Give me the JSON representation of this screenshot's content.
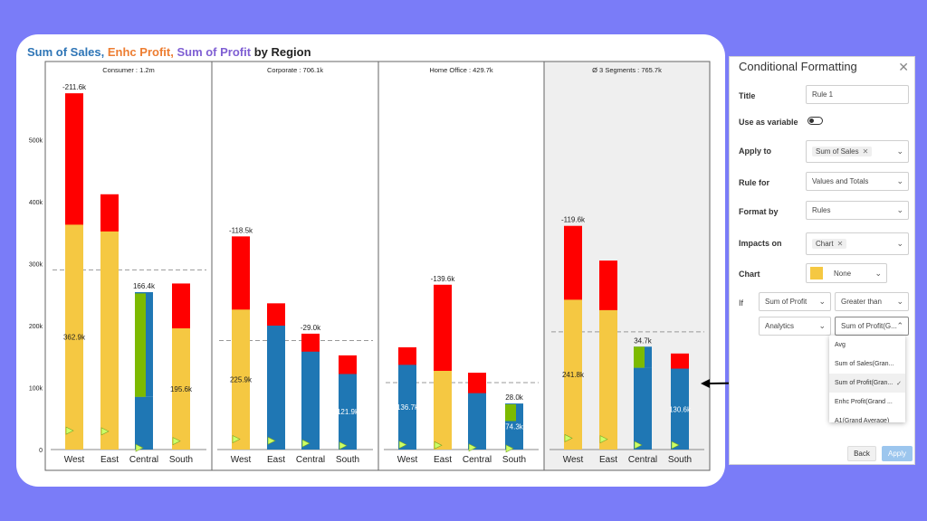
{
  "chart_title": {
    "part1": "Sum of Sales,",
    "part2": "Enhc Profit,",
    "part3": "Sum of Profit",
    "part4": "by Region"
  },
  "colors": {
    "sales": "#f5c842",
    "enhc": "#ff0000",
    "profit": "#1f77b4",
    "green": "#7cba00",
    "marker": "#ccff66"
  },
  "chart_data": {
    "type": "bar",
    "y_ticks": [
      "0",
      "100k",
      "200k",
      "300k",
      "400k",
      "500k"
    ],
    "ylim": [
      0,
      600000
    ],
    "categories": [
      "West",
      "East",
      "Central",
      "South"
    ],
    "panels": [
      {
        "title": "Consumer :  1.2m",
        "avg": 290000,
        "bars": [
          {
            "cat": "West",
            "base": "sales",
            "base_val": 362900,
            "enhc_top": 575000,
            "top_label": "-211.6k",
            "mid_label": "362.9k"
          },
          {
            "cat": "East",
            "base": "sales",
            "base_val": 352000,
            "enhc_top": 412000,
            "top_label": "",
            "mid_label": ""
          },
          {
            "cat": "Central",
            "base": "profit",
            "base_val": 85000,
            "green_top": 252000,
            "blue_top": 254000,
            "top_label": "166.4k",
            "mid_label": ""
          },
          {
            "cat": "South",
            "base": "sales",
            "base_val": 195600,
            "enhc_top": 268000,
            "top_label": "",
            "mid_label": "195.6k"
          }
        ]
      },
      {
        "title": "Corporate :  706.1k",
        "avg": 176000,
        "bars": [
          {
            "cat": "West",
            "base": "sales",
            "base_val": 225900,
            "enhc_top": 344000,
            "top_label": "-118.5k",
            "mid_label": "225.9k"
          },
          {
            "cat": "East",
            "base": "profit",
            "base_val": 200000,
            "enhc_top": 236000,
            "top_label": "",
            "mid_label": ""
          },
          {
            "cat": "Central",
            "base": "profit",
            "base_val": 158000,
            "enhc_top": 187000,
            "top_label": "-29.0k",
            "mid_label": ""
          },
          {
            "cat": "South",
            "base": "profit",
            "base_val": 121900,
            "enhc_top": 152000,
            "top_label": "",
            "mid_label": "121.9k"
          }
        ]
      },
      {
        "title": "Home Office :  429.7k",
        "avg": 108000,
        "bars": [
          {
            "cat": "West",
            "base": "profit",
            "base_val": 136700,
            "enhc_top": 165000,
            "top_label": "",
            "mid_label": "136.7k"
          },
          {
            "cat": "East",
            "base": "sales",
            "base_val": 127000,
            "enhc_top": 266000,
            "top_label": "-139.6k",
            "mid_label": ""
          },
          {
            "cat": "Central",
            "base": "profit",
            "base_val": 91000,
            "enhc_top": 124000,
            "top_label": "",
            "mid_label": ""
          },
          {
            "cat": "South",
            "base": "profit",
            "base_val": 74300,
            "green_top": 73000,
            "blue_top": 73000,
            "green_bottom": 46000,
            "top_label": "28.0k",
            "mid_label": "74.3k"
          }
        ]
      },
      {
        "title": "Ø 3 Segments :  765.7k",
        "avg": 190000,
        "bars": [
          {
            "cat": "West",
            "base": "sales",
            "base_val": 241800,
            "enhc_top": 361000,
            "top_label": "-119.6k",
            "mid_label": "241.8k"
          },
          {
            "cat": "East",
            "base": "sales",
            "base_val": 225000,
            "enhc_top": 305000,
            "top_label": "",
            "mid_label": ""
          },
          {
            "cat": "Central",
            "base": "profit",
            "base_val": 132000,
            "green_top": 166000,
            "blue_top": 166000,
            "green_bottom": 132000,
            "top_label": "34.7k",
            "mid_label": ""
          },
          {
            "cat": "South",
            "base": "profit",
            "base_val": 130600,
            "enhc_top": 155000,
            "top_label": "",
            "mid_label": "130.6k"
          }
        ]
      }
    ]
  },
  "panel": {
    "title": "Conditional Formatting",
    "close_icon": "close-icon",
    "title_label": "Title",
    "title_value": "Rule 1",
    "variable_label": "Use as variable",
    "apply_to_label": "Apply to",
    "apply_to_chip": "Sum of Sales",
    "rule_for_label": "Rule for",
    "rule_for_value": "Values and Totals",
    "format_by_label": "Format by",
    "format_by_value": "Rules",
    "impacts_label": "Impacts on",
    "impacts_chip": "Chart",
    "chart_label": "Chart",
    "chart_color": "None",
    "if_label": "If",
    "if_field": "Sum of Profit",
    "if_op": "Greater than",
    "analytics_value": "Analytics",
    "compare_value": "Sum of Profit(G...",
    "dropdown_options": [
      "Avg",
      "Sum of Sales(Gran...",
      "Sum of Profit(Gran...",
      "Enhc Profit(Grand ...",
      "A1(Grand Average)"
    ],
    "back_label": "Back",
    "apply_label": "Apply"
  }
}
